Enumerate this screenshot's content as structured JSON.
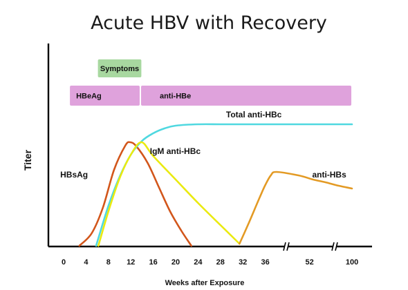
{
  "chart_data": {
    "type": "line",
    "title": "Acute HBV with Recovery",
    "xlabel": "Weeks after Exposure",
    "ylabel": "Titer",
    "x_ticks": [
      "0",
      "4",
      "8",
      "12",
      "16",
      "20",
      "24",
      "28",
      "32",
      "36",
      "52",
      "100"
    ],
    "axis_breaks": [
      "after 36",
      "after 52"
    ],
    "grid": false,
    "legend": "none (curves labeled directly)",
    "periods": [
      {
        "name": "Symptoms",
        "x": [
          6,
          14
        ],
        "color": "#a8d8a0"
      },
      {
        "name": "HBeAg",
        "x": [
          1,
          13.7
        ],
        "color": "#dfa2dc"
      },
      {
        "name": "anti-HBe",
        "x": [
          13.7,
          100
        ],
        "color": "#dfa2dc"
      }
    ],
    "series": [
      {
        "name": "HBsAg",
        "color": "#d2561b",
        "points": [
          [
            2.8,
            0
          ],
          [
            5,
            18
          ],
          [
            7,
            55
          ],
          [
            9,
            110
          ],
          [
            11,
            145
          ],
          [
            11.9,
            150
          ],
          [
            13,
            144
          ],
          [
            15,
            120
          ],
          [
            17,
            85
          ],
          [
            19,
            50
          ],
          [
            21,
            22
          ],
          [
            22.8,
            0
          ]
        ]
      },
      {
        "name": "Total anti-HBc",
        "color": "#4fd8e0",
        "points": [
          [
            5.8,
            0
          ],
          [
            8,
            58
          ],
          [
            10,
            100
          ],
          [
            12,
            132
          ],
          [
            14,
            152
          ],
          [
            16,
            163
          ],
          [
            18,
            170
          ],
          [
            20,
            174
          ],
          [
            24,
            176
          ],
          [
            28,
            176
          ],
          [
            32,
            176
          ],
          [
            36,
            176
          ],
          [
            52,
            176
          ],
          [
            100,
            176
          ]
        ]
      },
      {
        "name": "IgM anti-HBc",
        "color": "#eaea10",
        "points": [
          [
            6.2,
            0
          ],
          [
            8,
            50
          ],
          [
            10,
            98
          ],
          [
            12,
            132
          ],
          [
            13.9,
            150
          ],
          [
            16,
            130
          ],
          [
            20,
            96
          ],
          [
            24,
            62
          ],
          [
            28,
            30
          ],
          [
            31.4,
            3
          ]
        ]
      },
      {
        "name": "anti-HBs",
        "color": "#e39a24",
        "points": [
          [
            31.4,
            3
          ],
          [
            33,
            32
          ],
          [
            35,
            70
          ],
          [
            36,
            88
          ],
          [
            38,
            102
          ],
          [
            40,
            107
          ],
          [
            48,
            102
          ],
          [
            56,
            96
          ],
          [
            70,
            92
          ],
          [
            85,
            87
          ],
          [
            100,
            83
          ]
        ]
      }
    ]
  }
}
